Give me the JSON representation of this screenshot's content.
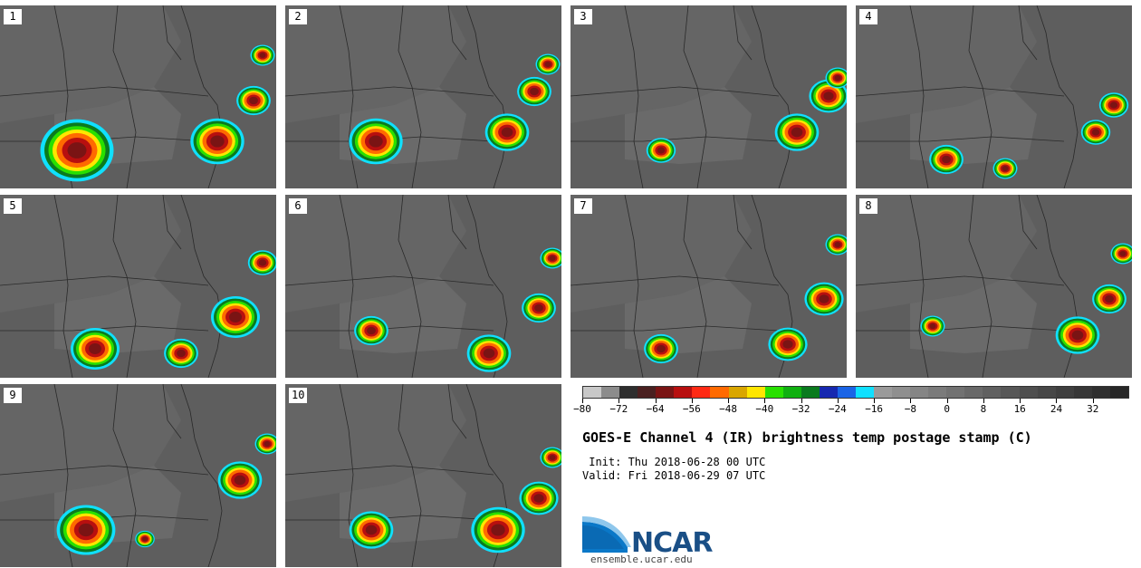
{
  "panels": [
    {
      "label": "1"
    },
    {
      "label": "2"
    },
    {
      "label": "3"
    },
    {
      "label": "4"
    },
    {
      "label": "5"
    },
    {
      "label": "6"
    },
    {
      "label": "7"
    },
    {
      "label": "8"
    },
    {
      "label": "9"
    },
    {
      "label": "10"
    }
  ],
  "colorbar": {
    "colors": [
      "#c8c8c8",
      "#8c8c8c",
      "#2e2e2e",
      "#4a2020",
      "#7a1414",
      "#b80f0f",
      "#ff2a14",
      "#ff6a00",
      "#d9a600",
      "#ffe600",
      "#28e000",
      "#10b010",
      "#0a7a1e",
      "#1628b0",
      "#1a64e6",
      "#10e0ff",
      "#9a9a9a",
      "#8f8f8f",
      "#858585",
      "#7b7b7b",
      "#727272",
      "#696969",
      "#606060",
      "#575757",
      "#4f4f4f",
      "#474747",
      "#3f3f3f",
      "#373737",
      "#2f2f2f",
      "#272727"
    ],
    "tick_labels": [
      "−80",
      "−72",
      "−64",
      "−56",
      "−48",
      "−40",
      "−32",
      "−24",
      "−16",
      "−8",
      "0",
      "8",
      "16",
      "24",
      "32"
    ]
  },
  "title": "GOES-E Channel 4 (IR) brightness temp postage stamp (C)",
  "init_line": " Init: Thu 2018-06-28 00 UTC",
  "valid_line": "Valid: Fri 2018-06-29 07 UTC",
  "logo_text": "NCAR",
  "website": "ensemble.ucar.edu"
}
